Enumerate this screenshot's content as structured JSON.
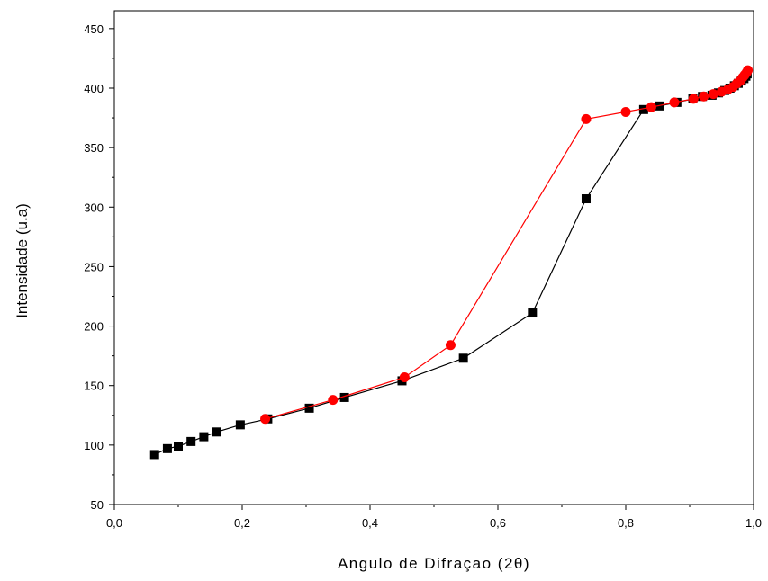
{
  "chart_data": {
    "type": "scatter",
    "title": "",
    "xlabel": "Angulo de Difraçao (2θ)",
    "ylabel": "Intensidade (u.a)",
    "xlim": [
      0.0,
      1.0
    ],
    "ylim": [
      50,
      465
    ],
    "x_ticks": [
      0.0,
      0.2,
      0.4,
      0.6,
      0.8,
      1.0
    ],
    "x_tick_labels": [
      "0,0",
      "0,2",
      "0,4",
      "0,6",
      "0,8",
      "1,0"
    ],
    "y_ticks": [
      50,
      100,
      150,
      200,
      250,
      300,
      350,
      400,
      450
    ],
    "y_tick_labels": [
      "50",
      "100",
      "150",
      "200",
      "250",
      "300",
      "350",
      "400",
      "450"
    ],
    "grid": false,
    "legend": "none",
    "series": [
      {
        "color": "#000000",
        "marker": "square",
        "points": [
          [
            0.063,
            92
          ],
          [
            0.083,
            97
          ],
          [
            0.1,
            99
          ],
          [
            0.12,
            103
          ],
          [
            0.14,
            107
          ],
          [
            0.16,
            111
          ],
          [
            0.197,
            117
          ],
          [
            0.24,
            122
          ],
          [
            0.305,
            131
          ],
          [
            0.36,
            140
          ],
          [
            0.45,
            154
          ],
          [
            0.546,
            173
          ],
          [
            0.654,
            211
          ],
          [
            0.738,
            307
          ],
          [
            0.828,
            382
          ],
          [
            0.853,
            385
          ],
          [
            0.88,
            388
          ],
          [
            0.905,
            391
          ],
          [
            0.92,
            393
          ],
          [
            0.935,
            394
          ],
          [
            0.945,
            396
          ],
          [
            0.955,
            398
          ],
          [
            0.963,
            400
          ],
          [
            0.97,
            402
          ],
          [
            0.976,
            404
          ],
          [
            0.981,
            406
          ],
          [
            0.985,
            408
          ],
          [
            0.988,
            410
          ],
          [
            0.99,
            412
          ]
        ]
      },
      {
        "color": "#ff0000",
        "marker": "circle",
        "points": [
          [
            0.236,
            122
          ],
          [
            0.342,
            138
          ],
          [
            0.454,
            157
          ],
          [
            0.526,
            184
          ],
          [
            0.738,
            374
          ],
          [
            0.8,
            380
          ],
          [
            0.84,
            384
          ],
          [
            0.876,
            388
          ],
          [
            0.906,
            391
          ],
          [
            0.922,
            393
          ],
          [
            0.937,
            395
          ],
          [
            0.95,
            397
          ],
          [
            0.96,
            399
          ],
          [
            0.968,
            401
          ],
          [
            0.974,
            404
          ],
          [
            0.979,
            406
          ],
          [
            0.983,
            409
          ],
          [
            0.986,
            411
          ],
          [
            0.989,
            413
          ],
          [
            0.991,
            415
          ]
        ]
      }
    ]
  }
}
